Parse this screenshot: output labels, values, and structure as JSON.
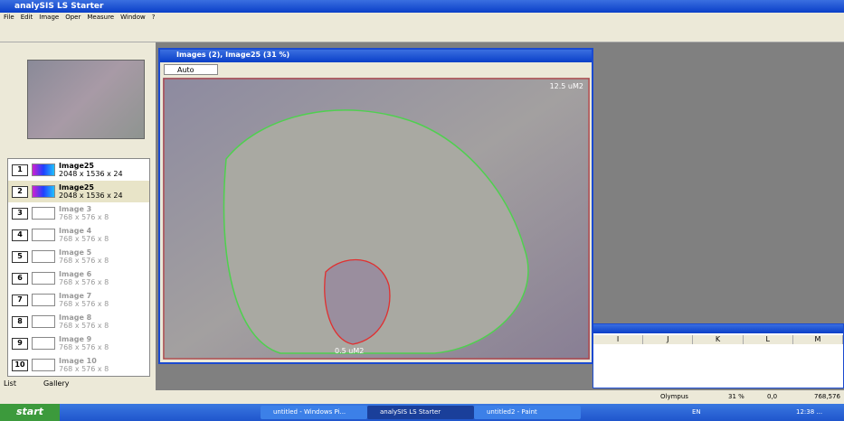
{
  "window": {
    "title": "analySIS LS Starter",
    "menu": [
      "File",
      "Edit",
      "Image",
      "Oper",
      "Measure",
      "Window",
      "?"
    ]
  },
  "image_window": {
    "title": "Images (2), Image25 (31 %)",
    "zoom": "Auto",
    "annotations": [
      "12.5 uM2",
      "0.5 uM2"
    ]
  },
  "image_list": [
    {
      "number": "1",
      "name": "Image25",
      "size": "2048 x 1536 x 24"
    },
    {
      "number": "2",
      "name": "Image25",
      "size": "2048 x 1536 x 24"
    },
    {
      "number": "3",
      "name": "Image 3",
      "size": "768 x 576 x 8"
    },
    {
      "number": "4",
      "name": "Image 4",
      "size": "768 x 576 x 8"
    },
    {
      "number": "5",
      "name": "Image 5",
      "size": "768 x 576 x 8"
    },
    {
      "number": "6",
      "name": "Image 6",
      "size": "768 x 576 x 8"
    },
    {
      "number": "7",
      "name": "Image 7",
      "size": "768 x 576 x 8"
    },
    {
      "number": "8",
      "name": "Image 8",
      "size": "768 x 576 x 8"
    },
    {
      "number": "9",
      "name": "Image 9",
      "size": "768 x 576 x 8"
    },
    {
      "number": "10",
      "name": "Image 10",
      "size": "768 x 576 x 8"
    }
  ],
  "tabs": [
    "List",
    "Gallery"
  ],
  "sheet": {
    "columns": [
      "I",
      "J",
      "K",
      "L",
      "M"
    ]
  },
  "status": {
    "camera": "Olympus",
    "zoom": "31 %",
    "position": "0,0",
    "size": "768,576"
  },
  "taskbar": {
    "start": "start",
    "tasks": [
      "untitled - Windows Pi...",
      "analySIS LS Starter",
      "untitled2 - Paint"
    ],
    "language": "EN",
    "clock": "12:38 ..."
  }
}
